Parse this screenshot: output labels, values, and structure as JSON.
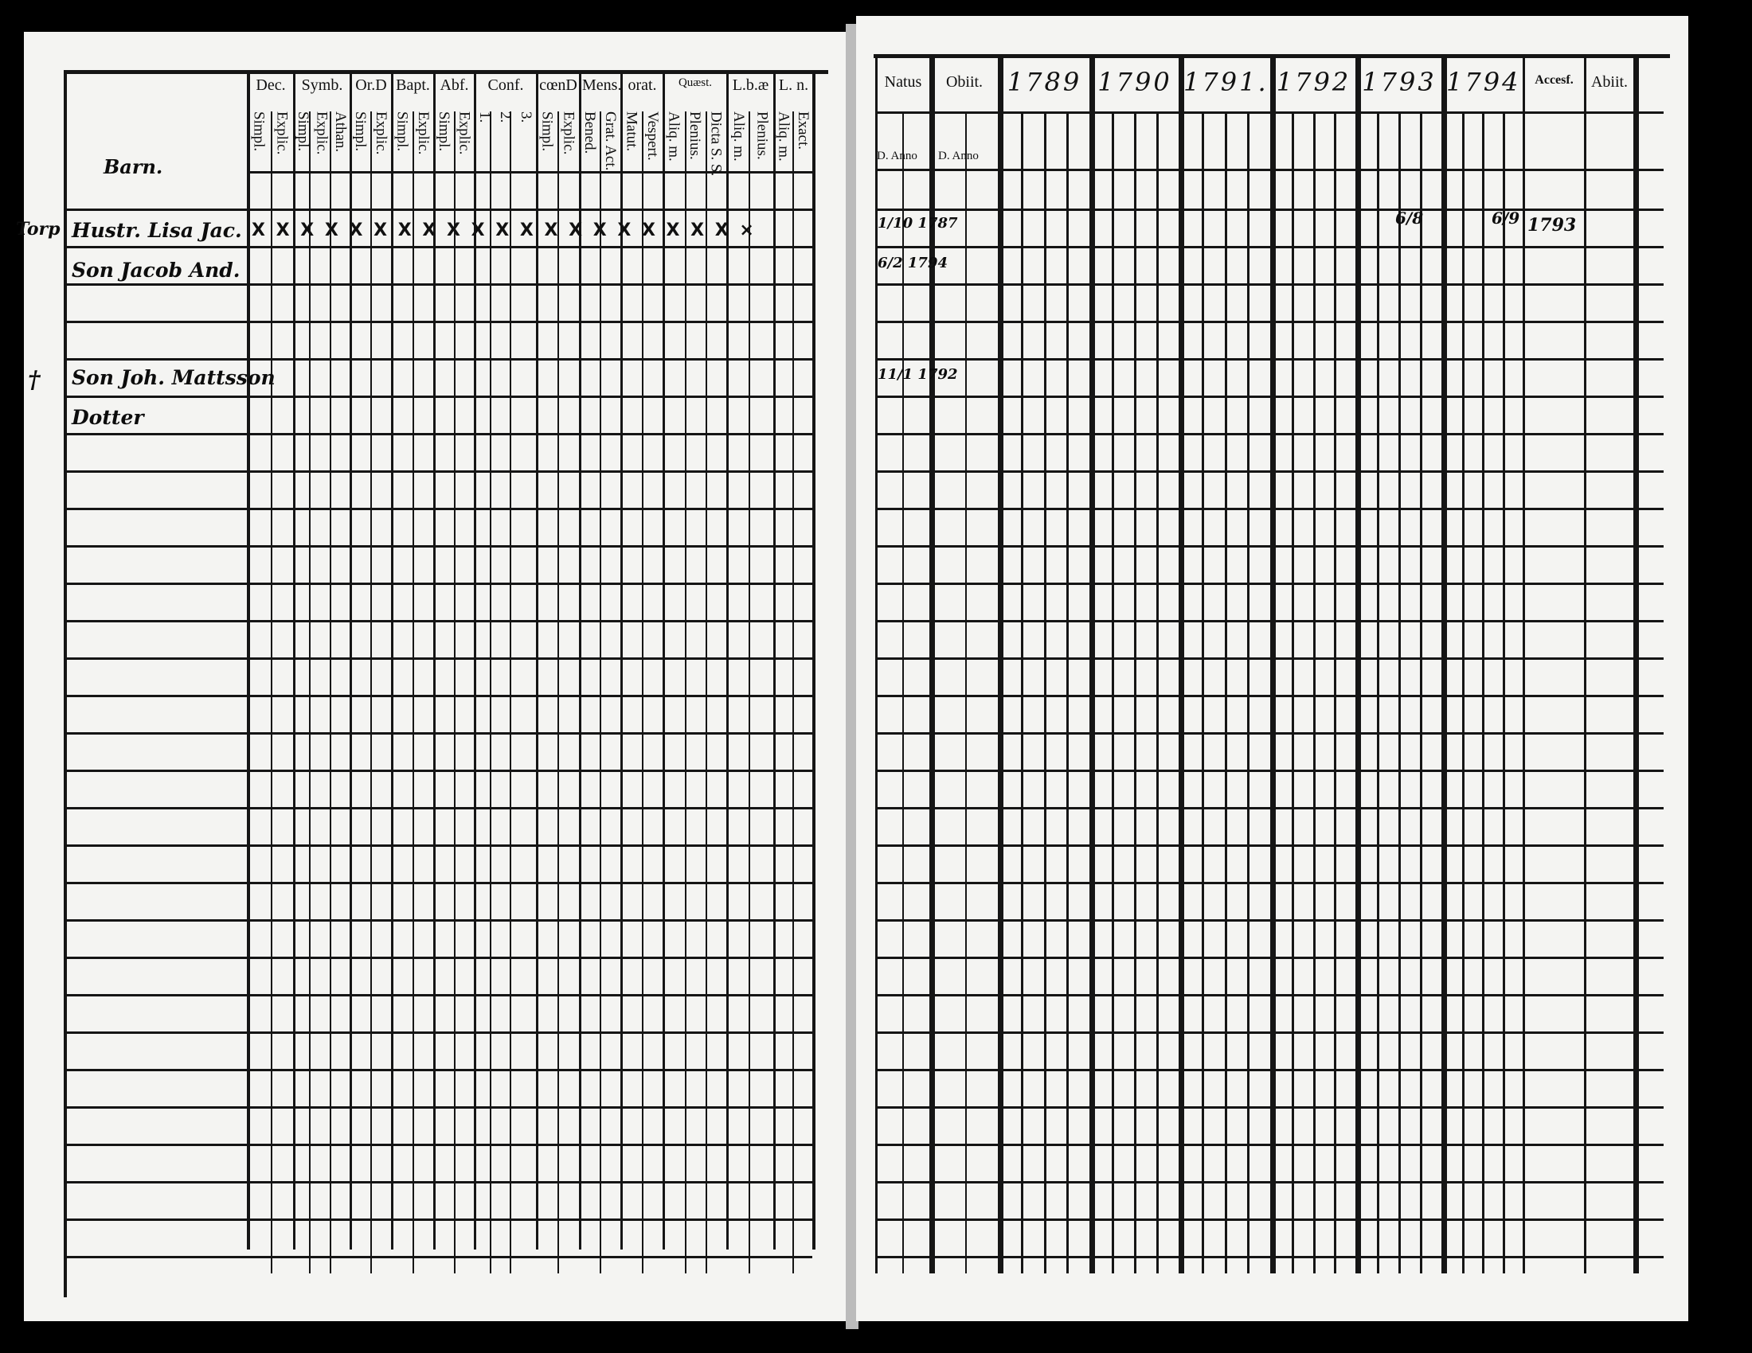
{
  "left_page": {
    "name_header": "Barn.",
    "column_groups": [
      {
        "label": "Dec.",
        "subs": [
          "Explic.",
          "Simpl."
        ]
      },
      {
        "label": "Symb.",
        "subs": [
          "Athan.",
          "Explic.",
          "Simpl."
        ]
      },
      {
        "label": "Or.D",
        "subs": [
          "Explic.",
          "Simpl."
        ]
      },
      {
        "label": "Bapt.",
        "subs": [
          "Explic.",
          "Simpl."
        ]
      },
      {
        "label": "Abf.",
        "subs": [
          "Explic.",
          "Simpl."
        ]
      },
      {
        "label": "Conf.",
        "subs": [
          "3.",
          "2.",
          "1."
        ]
      },
      {
        "label": "cœnD",
        "subs": [
          "Explic.",
          "Simpl."
        ]
      },
      {
        "label": "Mens.",
        "subs": [
          "Grat. Act.",
          "Bened."
        ]
      },
      {
        "label": "orat.",
        "subs": [
          "Vespert.",
          "Matut."
        ]
      },
      {
        "label": "Quæst.",
        "subs": [
          "Dicta S. S.",
          "Plenius.",
          "Aliq. m."
        ]
      },
      {
        "label": "L.b.æ",
        "subs": [
          "Plenius.",
          "Aliq. m."
        ]
      },
      {
        "label": "L. n.",
        "subs": [
          "Exact.",
          "Aliq. m."
        ]
      }
    ],
    "margin_notes": [
      "Torp",
      "†"
    ],
    "entries": [
      {
        "name": "Hustr. Lisa Jac.",
        "marks": "X X  X X  X X  X X  X X  X X X  X X  X X  X X  X  ×"
      },
      {
        "name": "Son Jacob And."
      },
      {
        "name": "Son Joh. Mattsson"
      },
      {
        "name": "Dotter"
      }
    ]
  },
  "right_page": {
    "headers": [
      "Natus",
      "Obiit.",
      "1789",
      "1790",
      "1791.",
      "1792",
      "1793",
      "1794",
      "Accesf.",
      "Abiit."
    ],
    "sub_headers": [
      "D. Anno",
      "D. Anno"
    ],
    "entries": [
      {
        "natus": "1/10 1787",
        "col_1793": "6/8",
        "col_1794": "6/9",
        "accessit": "1793"
      },
      {
        "natus": "6/2 1794"
      },
      {
        "natus": "11/1 1792"
      }
    ]
  }
}
